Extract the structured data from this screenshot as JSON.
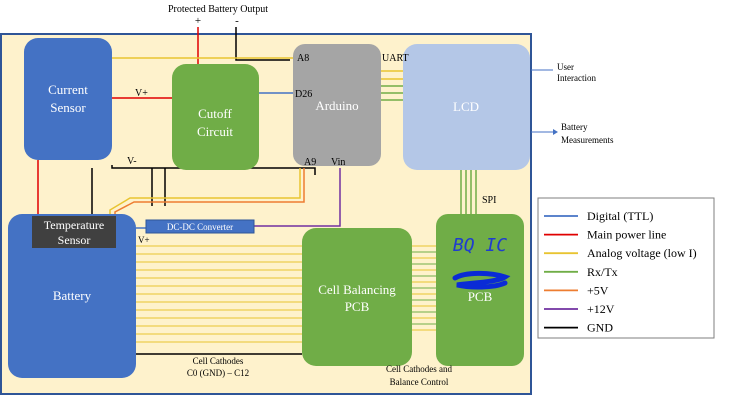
{
  "top": {
    "output_label": "Protected Battery Output",
    "plus": "+",
    "minus": "-"
  },
  "blocks": {
    "current_sensor": [
      "Current",
      "Sensor"
    ],
    "cutoff_circuit": [
      "Cutoff",
      "Circuit"
    ],
    "arduino": "Arduino",
    "lcd": "LCD",
    "temperature_sensor": [
      "Temperature",
      "Sensor"
    ],
    "dcdc_converter": "DC-DC Converter",
    "battery": "Battery",
    "cell_balancing": [
      "Cell Balancing",
      "PCB"
    ],
    "bq_pcb": "PCB",
    "bq_handwritten": "BQ IC"
  },
  "pins": {
    "a8": "A8",
    "uart": "UART",
    "d26": "D26",
    "a9": "A9",
    "vin": "Vin",
    "v_plus_current": "V+",
    "v_minus": "V-",
    "v_plus_battery": "V+",
    "spi": "SPI"
  },
  "annotations": {
    "cell_cathodes": [
      "Cell Cathodes",
      "C0 (GND) – C12"
    ],
    "cell_cathodes_balance": [
      "Cell Cathodes and",
      "Balance Control"
    ],
    "user_interaction": [
      "User",
      "Interaction"
    ],
    "battery_measurements": [
      "Battery",
      "Measurements"
    ]
  },
  "legend": {
    "items": [
      {
        "label": "Digital (TTL)",
        "color": "#4472c4"
      },
      {
        "label": "Main power line",
        "color": "#e00000"
      },
      {
        "label": "Analog voltage (low I)",
        "color": "#e8c430"
      },
      {
        "label": "Rx/Tx",
        "color": "#70ad47"
      },
      {
        "label": "+5V",
        "color": "#ed7d31"
      },
      {
        "label": "+12V",
        "color": "#7030a0"
      },
      {
        "label": "GND",
        "color": "#000000"
      }
    ]
  },
  "colors": {
    "panel_bg": "#fef2cc",
    "panel_border": "#2f5597",
    "blue_block": "#4472c4",
    "green_block": "#70ad47",
    "gray_block": "#a5a5a5",
    "lcd_block": "#b4c7e7",
    "dark_block": "#404040"
  }
}
